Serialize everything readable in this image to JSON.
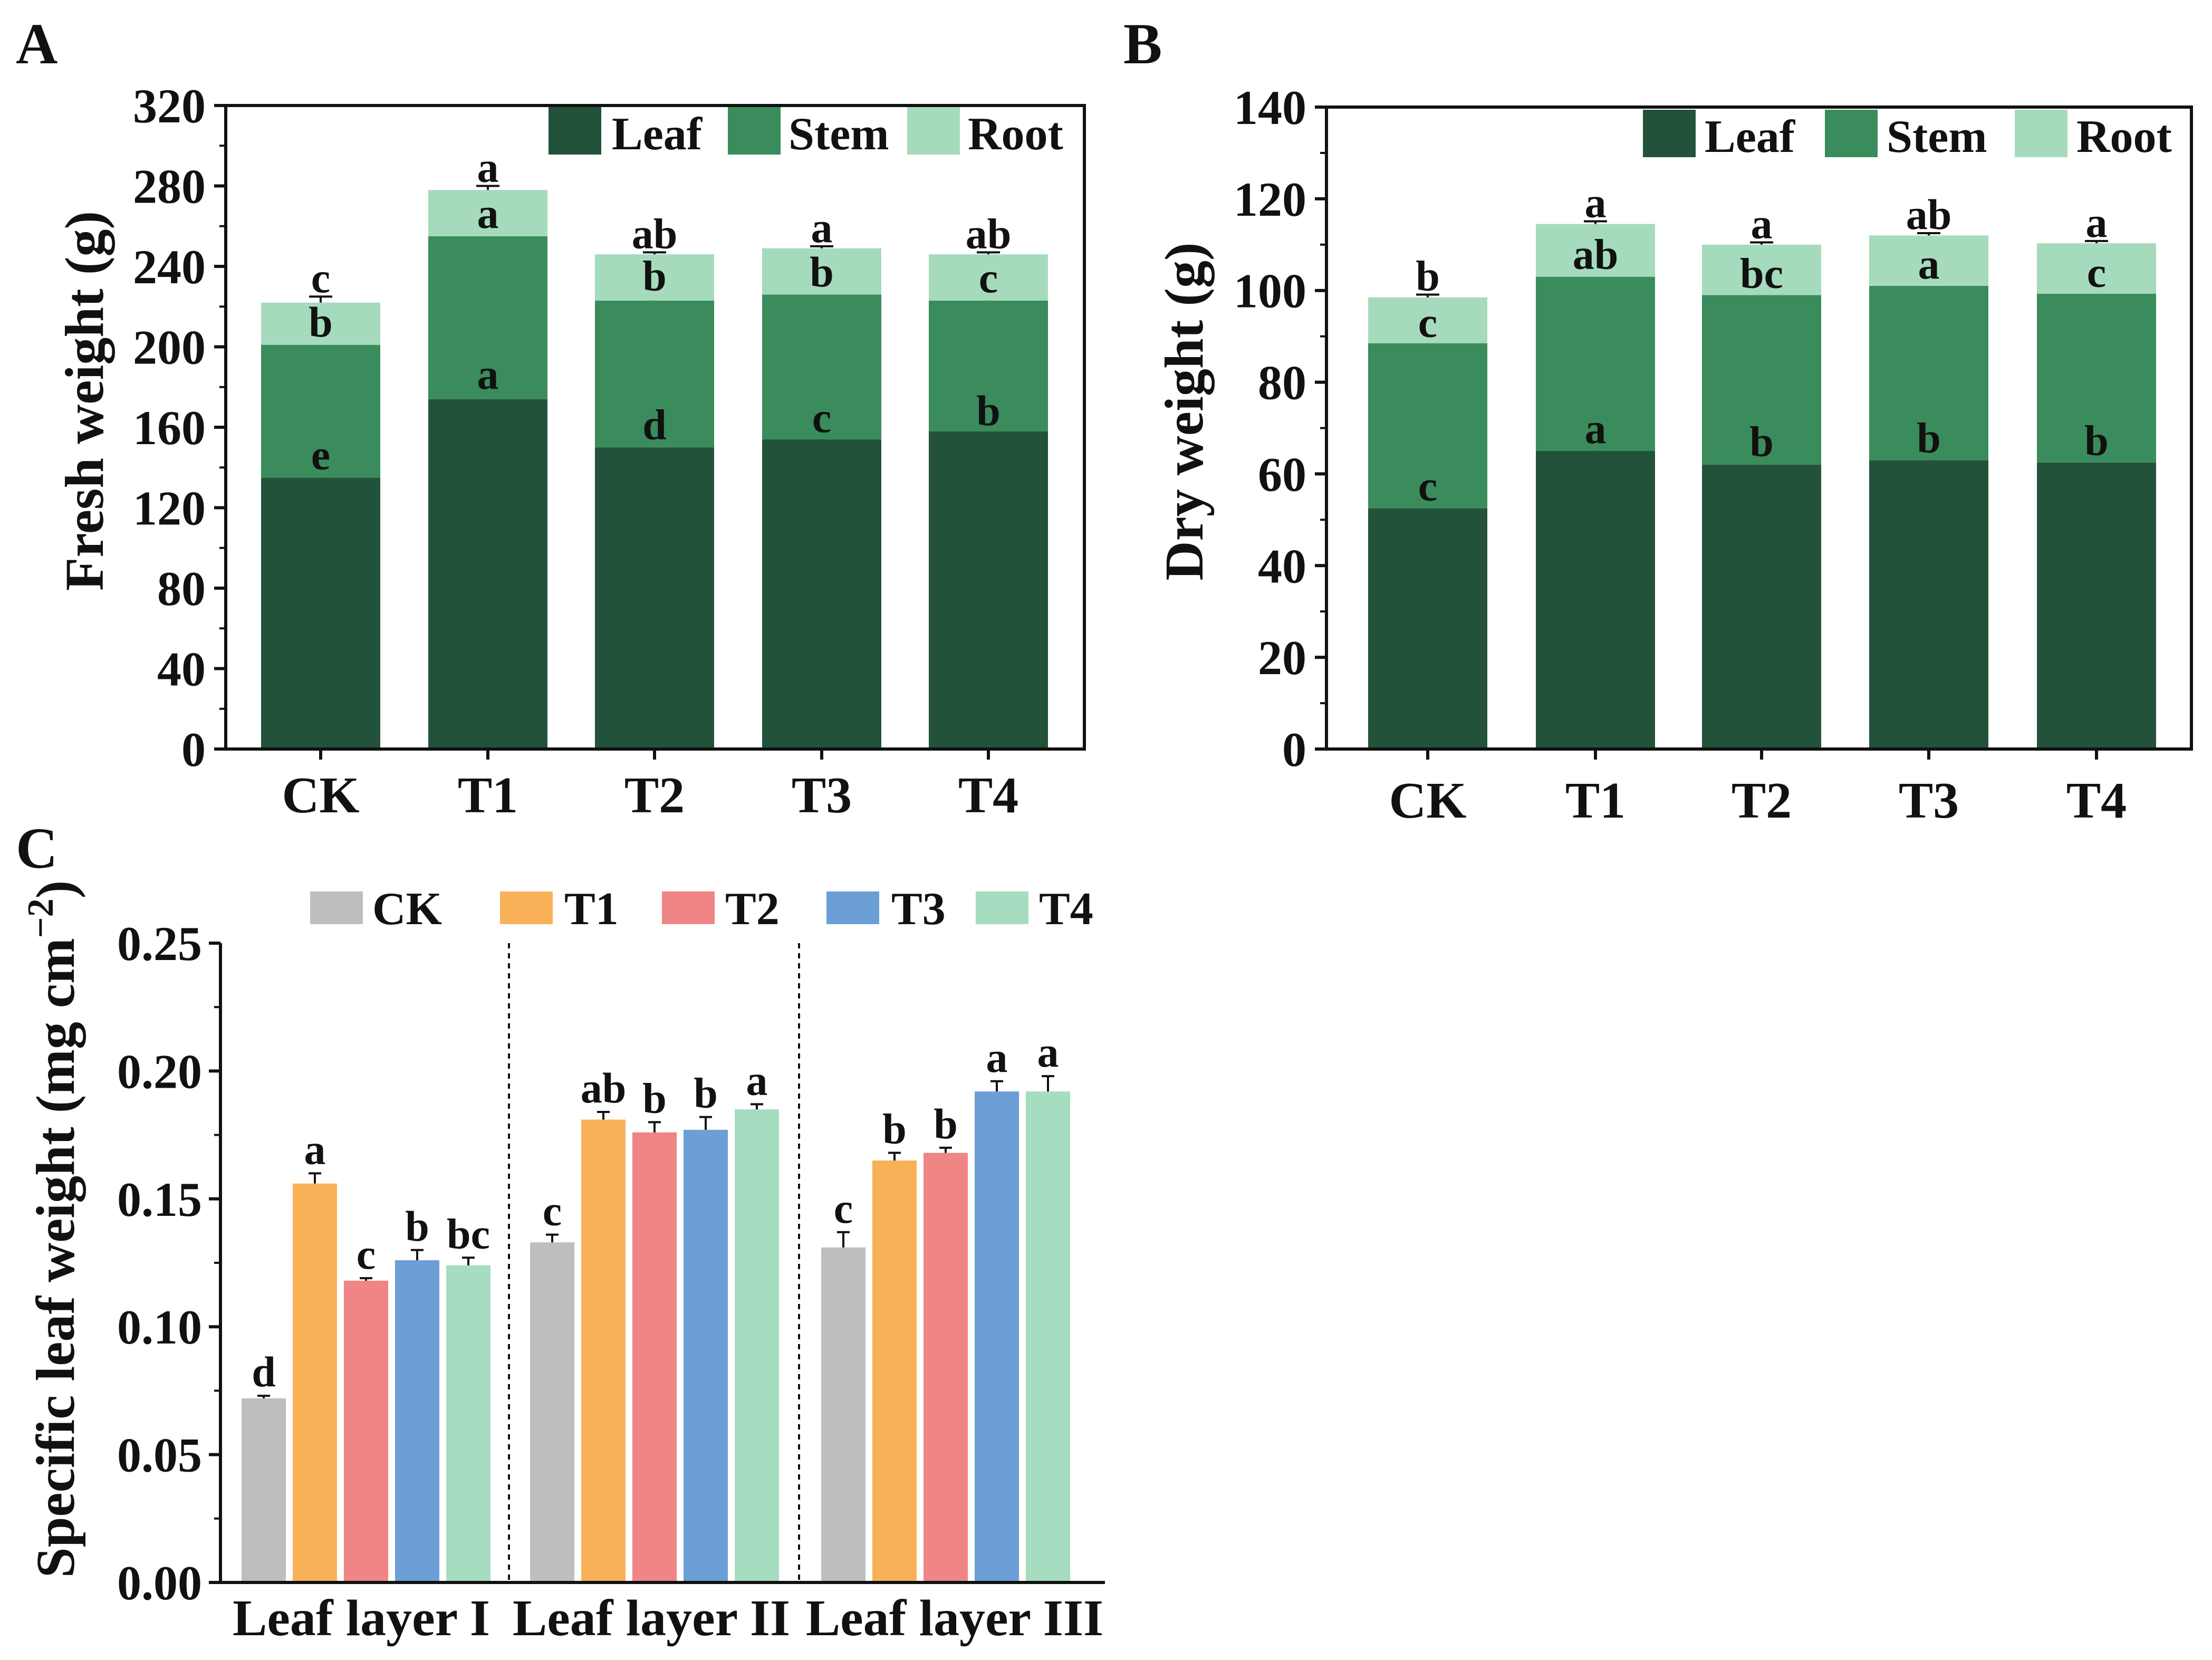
{
  "colors": {
    "leaf": "#23523a",
    "stem": "#3a8c5c",
    "root": "#a5dbbc",
    "ck": "#bdbec0",
    "t1": "#f9b158",
    "t2": "#ef8585",
    "t3": "#6b9fd5",
    "t4": "#a6dcc0",
    "axis": "#111111"
  },
  "chart_data": [
    {
      "id": "A",
      "panel_label": "A",
      "type": "bar",
      "stacked": true,
      "ylabel": "Fresh weight (g)",
      "ylim": [
        0,
        320
      ],
      "yticks": [
        0,
        40,
        80,
        120,
        160,
        200,
        240,
        280,
        320
      ],
      "categories": [
        "CK",
        "T1",
        "T2",
        "T3",
        "T4"
      ],
      "legend_position": "top-right",
      "series": [
        {
          "name": "Leaf",
          "values": [
            135,
            174,
            150,
            154,
            158
          ],
          "errors": [
            2,
            3,
            2,
            1.5,
            1
          ],
          "letters": [
            "e",
            "a",
            "d",
            "c",
            "b"
          ]
        },
        {
          "name": "Stem",
          "values": [
            66,
            81,
            73,
            72,
            65
          ],
          "errors": [
            2,
            2,
            3,
            2,
            2
          ],
          "letters": [
            "b",
            "a",
            "b",
            "b",
            "c"
          ]
        },
        {
          "name": "Root",
          "values": [
            21,
            23,
            23,
            23,
            23
          ],
          "errors": [
            3,
            2,
            1,
            1,
            1
          ],
          "letters": [
            "c",
            "a",
            "ab",
            "a",
            "ab"
          ]
        }
      ]
    },
    {
      "id": "B",
      "panel_label": "B",
      "type": "bar",
      "stacked": true,
      "ylabel": "Dry weight (g)",
      "ylim": [
        0,
        140
      ],
      "yticks": [
        0,
        20,
        40,
        60,
        80,
        100,
        120,
        140
      ],
      "categories": [
        "CK",
        "T1",
        "T2",
        "T3",
        "T4"
      ],
      "legend_position": "top-right",
      "series": [
        {
          "name": "Leaf",
          "values": [
            52.5,
            65,
            62,
            63,
            62.5
          ],
          "errors": [
            0.8,
            0.8,
            1,
            0.8,
            0.7
          ],
          "letters": [
            "c",
            "a",
            "b",
            "b",
            "b"
          ]
        },
        {
          "name": "Stem",
          "values": [
            36,
            38,
            37,
            38,
            36.8
          ],
          "errors": [
            0.5,
            0.8,
            0.7,
            0.7,
            0.6
          ],
          "letters": [
            "c",
            "ab",
            "bc",
            "a",
            "c"
          ]
        },
        {
          "name": "Root",
          "values": [
            10,
            11.5,
            11,
            11,
            11
          ],
          "errors": [
            0.6,
            0.6,
            0.5,
            0.5,
            0.5
          ],
          "letters": [
            "b",
            "a",
            "a",
            "ab",
            "a"
          ]
        }
      ]
    },
    {
      "id": "C",
      "panel_label": "C",
      "type": "bar",
      "stacked": false,
      "ylabel": "Specific leaf weight (mg cm",
      "ylabel_sup": "−2",
      "ylabel_close": ")",
      "ylim": [
        0,
        0.25
      ],
      "yticks": [
        "0.00",
        "0.05",
        "0.10",
        "0.15",
        "0.20",
        "0.25"
      ],
      "categories": [
        "Leaf layer I",
        "Leaf layer II",
        "Leaf layer III"
      ],
      "legend_position": "top",
      "series": [
        {
          "name": "CK",
          "values": [
            0.072,
            0.133,
            0.131
          ],
          "errors": [
            0.001,
            0.003,
            0.006
          ],
          "letters": [
            "d",
            "c",
            "c"
          ]
        },
        {
          "name": "T1",
          "values": [
            0.156,
            0.181,
            0.165
          ],
          "errors": [
            0.004,
            0.003,
            0.003
          ],
          "letters": [
            "a",
            "ab",
            "b"
          ]
        },
        {
          "name": "T2",
          "values": [
            0.118,
            0.176,
            0.168
          ],
          "errors": [
            0.001,
            0.004,
            0.002
          ],
          "letters": [
            "c",
            "b",
            "b"
          ]
        },
        {
          "name": "T3",
          "values": [
            0.126,
            0.177,
            0.192
          ],
          "errors": [
            0.004,
            0.005,
            0.004
          ],
          "letters": [
            "b",
            "b",
            "a"
          ]
        },
        {
          "name": "T4",
          "values": [
            0.124,
            0.185,
            0.192
          ],
          "errors": [
            0.003,
            0.002,
            0.006
          ],
          "letters": [
            "bc",
            "a",
            "a"
          ]
        }
      ]
    }
  ]
}
